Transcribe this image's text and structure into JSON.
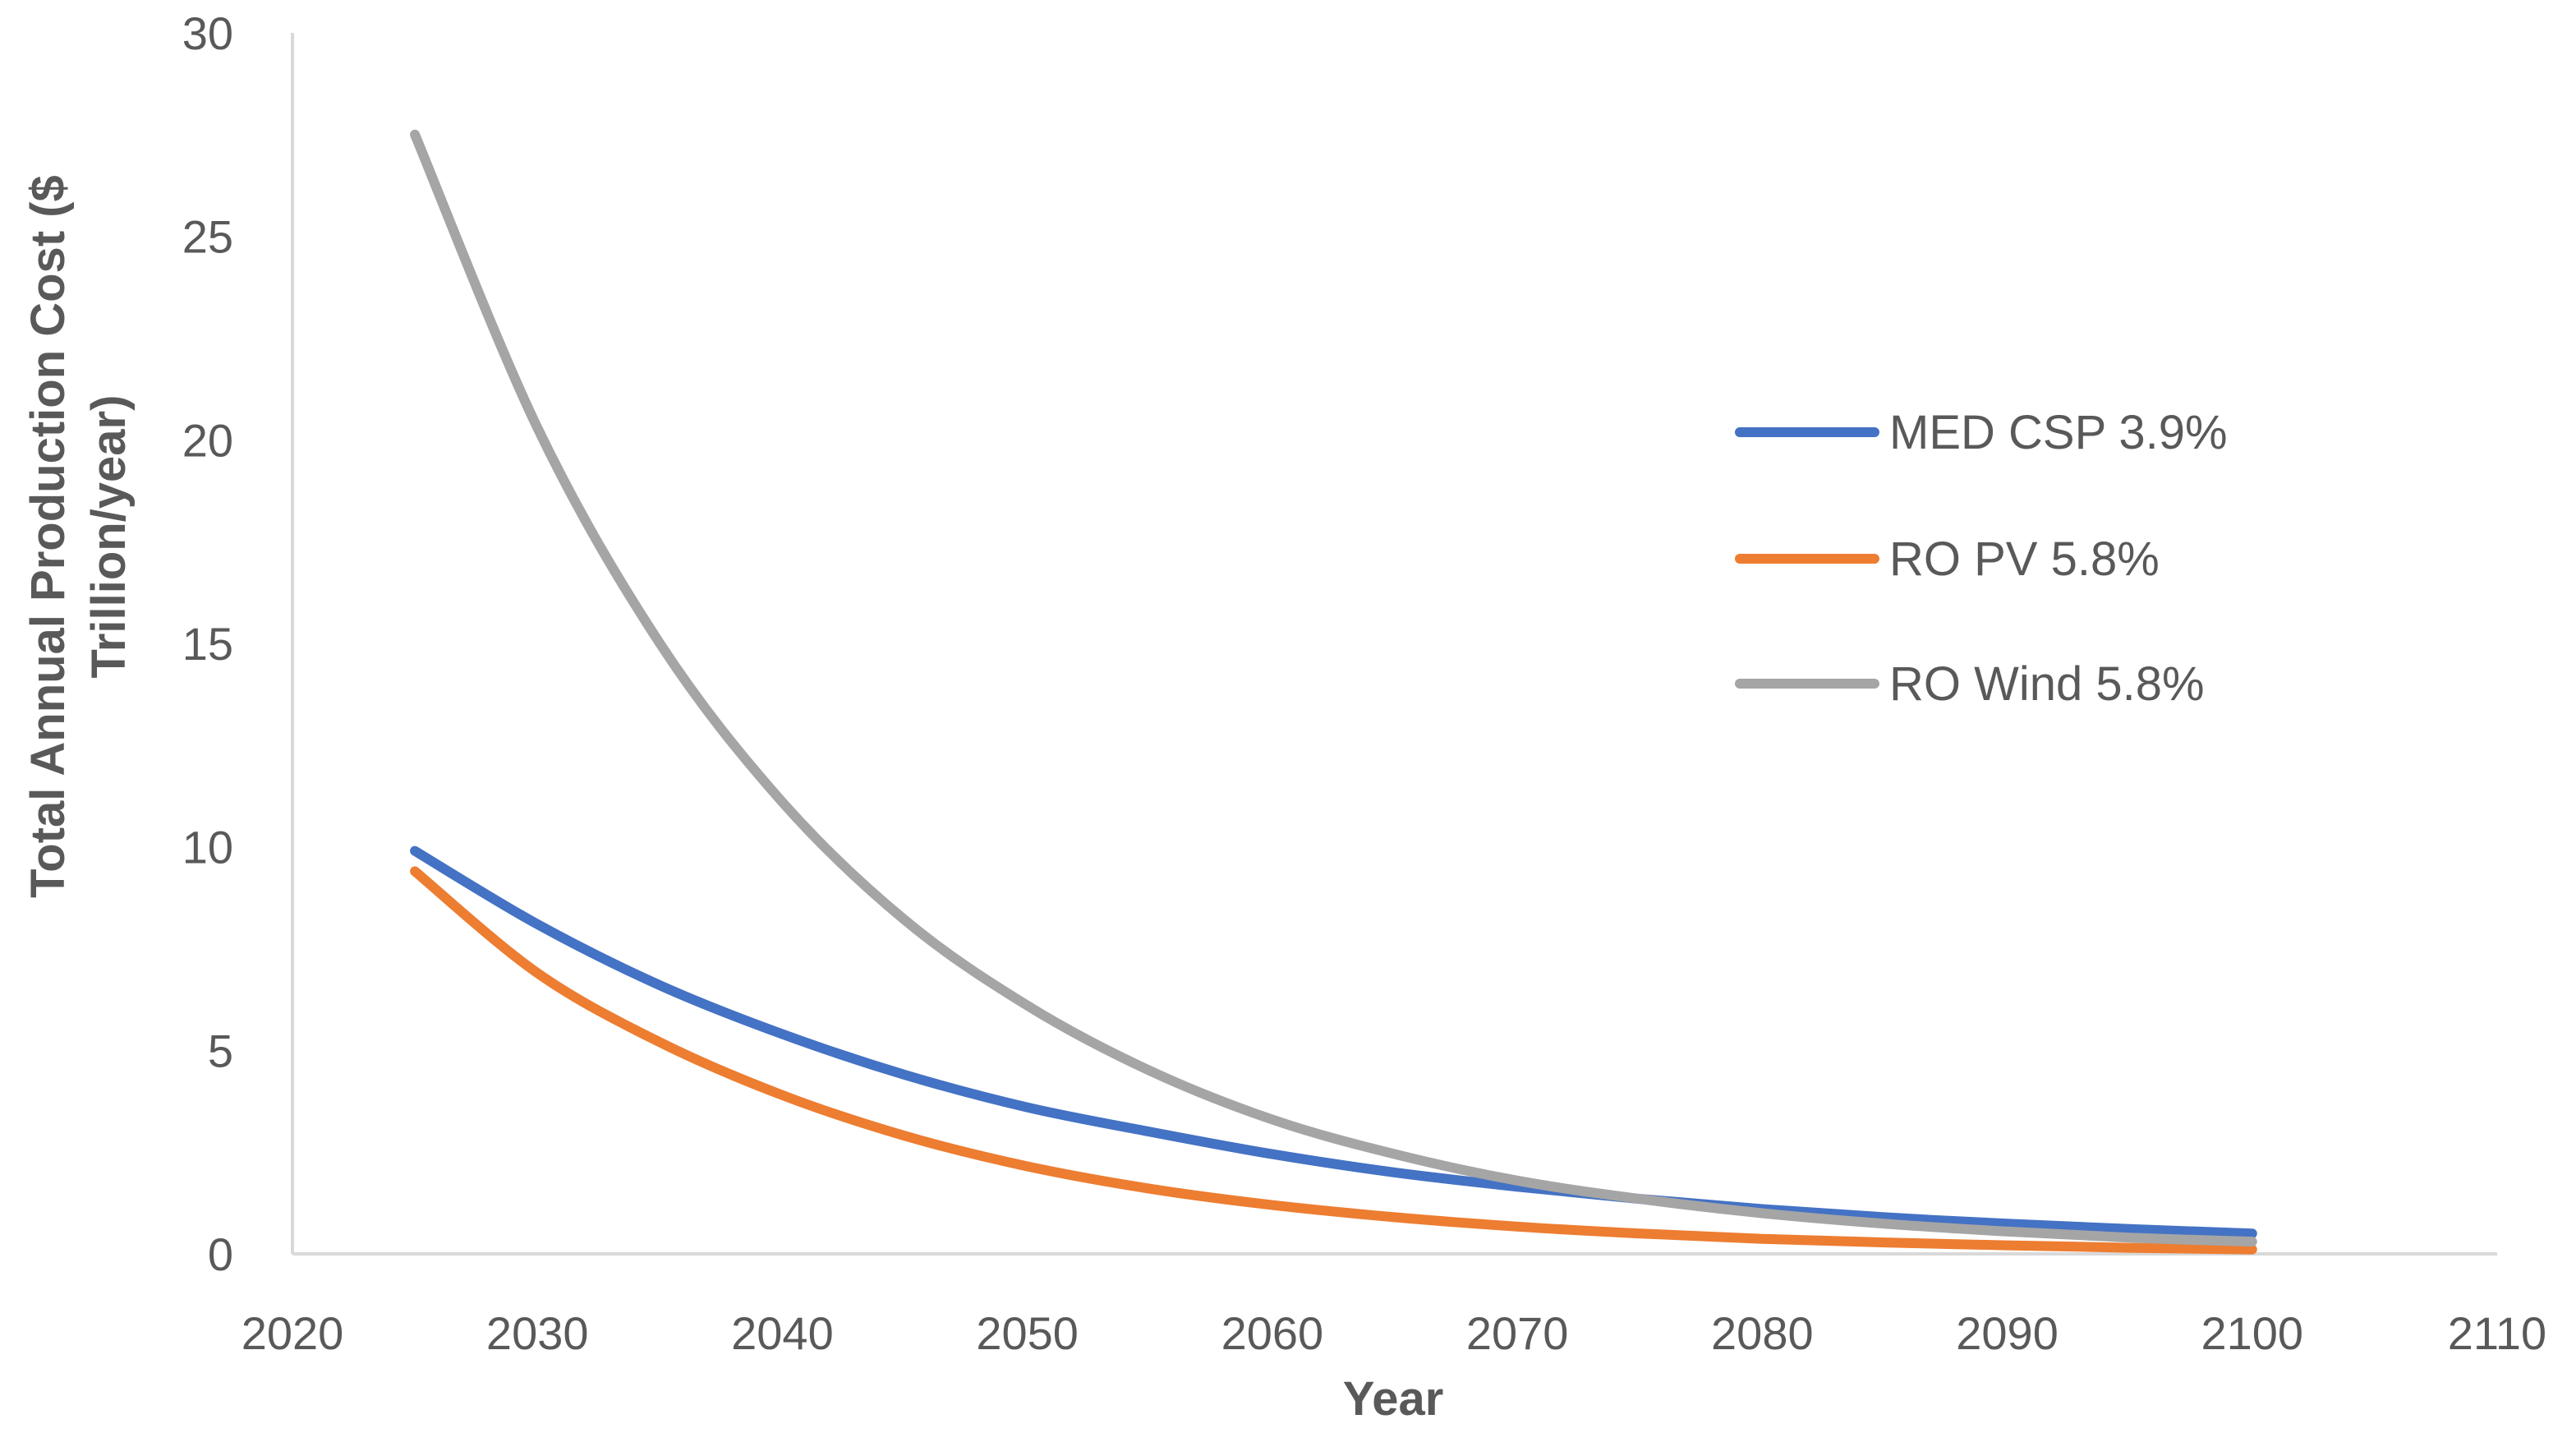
{
  "chart_data": {
    "type": "line",
    "title": "",
    "xlabel": "Year",
    "ylabel_lines": [
      "Total Annual Production Cost ($",
      "Trillion/year)"
    ],
    "xlim": [
      2020,
      2110
    ],
    "ylim": [
      0,
      30
    ],
    "x_ticks": [
      2020,
      2030,
      2040,
      2050,
      2060,
      2070,
      2080,
      2090,
      2100,
      2110
    ],
    "y_ticks": [
      0,
      5,
      10,
      15,
      20,
      25,
      30
    ],
    "grid": false,
    "legend_position": "right",
    "series": [
      {
        "name": "MED CSP 3.9%",
        "color": "#4472C4",
        "x": [
          2025,
          2030,
          2035,
          2040,
          2045,
          2050,
          2055,
          2060,
          2065,
          2070,
          2075,
          2080,
          2085,
          2090,
          2095,
          2100
        ],
        "y": [
          9.9,
          8.1,
          6.6,
          5.4,
          4.4,
          3.6,
          3.0,
          2.45,
          2.0,
          1.65,
          1.35,
          1.1,
          0.9,
          0.74,
          0.61,
          0.5
        ]
      },
      {
        "name": "RO PV 5.8%",
        "color": "#ED7D31",
        "x": [
          2025,
          2030,
          2035,
          2040,
          2045,
          2050,
          2055,
          2060,
          2065,
          2070,
          2075,
          2080,
          2085,
          2090,
          2095,
          2100
        ],
        "y": [
          9.4,
          6.9,
          5.2,
          3.9,
          2.9,
          2.15,
          1.6,
          1.2,
          0.9,
          0.67,
          0.5,
          0.37,
          0.28,
          0.21,
          0.15,
          0.11
        ]
      },
      {
        "name": "RO Wind 5.8%",
        "color": "#A5A5A5",
        "x": [
          2025,
          2030,
          2035,
          2040,
          2045,
          2050,
          2055,
          2060,
          2065,
          2070,
          2075,
          2080,
          2085,
          2090,
          2095,
          2100
        ],
        "y": [
          27.5,
          20.3,
          15.0,
          11.1,
          8.2,
          6.1,
          4.5,
          3.3,
          2.45,
          1.8,
          1.35,
          1.0,
          0.74,
          0.55,
          0.4,
          0.3
        ]
      }
    ]
  }
}
